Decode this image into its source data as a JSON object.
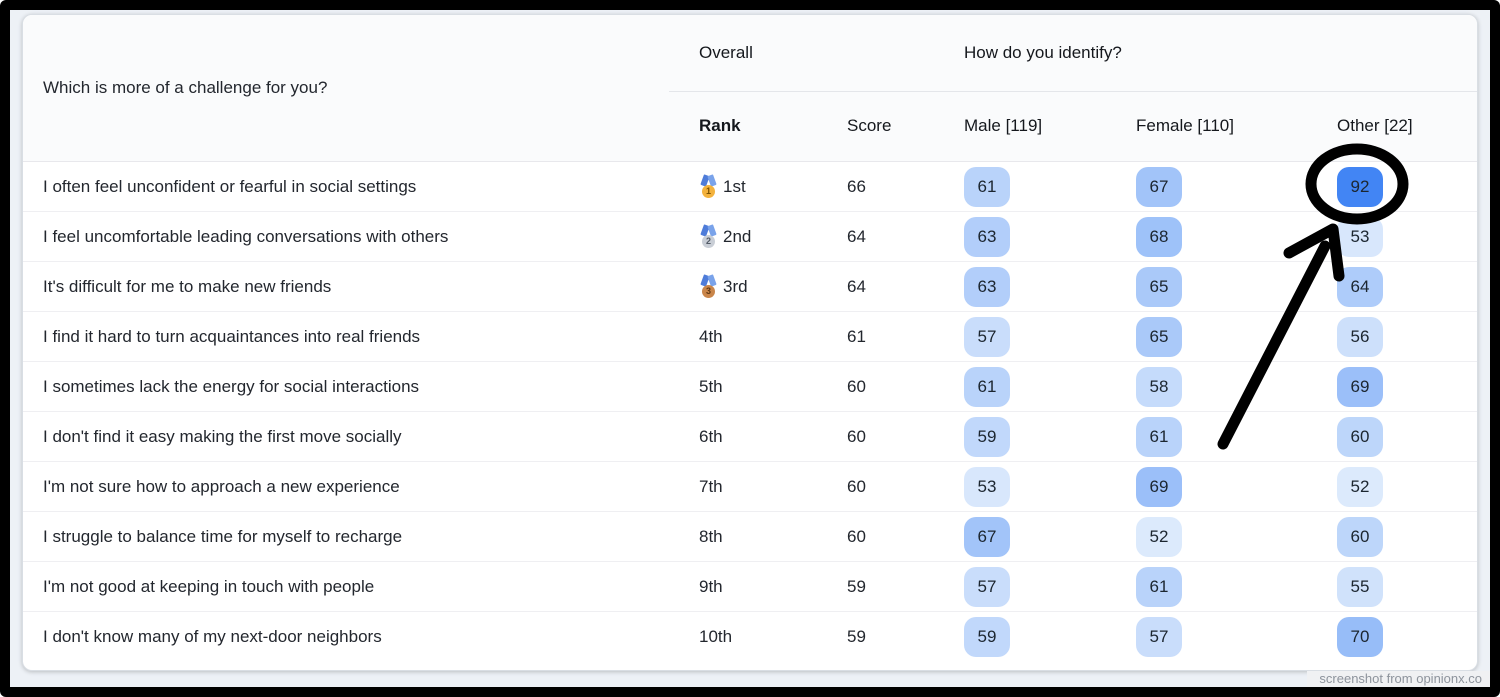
{
  "frame": {
    "border_color": "#000000",
    "page_background": "#edf1f6"
  },
  "table": {
    "question_header": "Which is more of a challenge for you?",
    "group_headers": {
      "overall": "Overall",
      "identify": "How do you identify?"
    },
    "columns": [
      "Rank",
      "Score",
      "Male [119]",
      "Female [110]",
      "Other [22]"
    ],
    "heat_scale": {
      "min_value": 52,
      "max_value": 92,
      "min_color": "#dceafc",
      "max_color": "#4285f4"
    },
    "rows": [
      {
        "question": "I often feel unconfident or fearful in social settings",
        "rank": "1st",
        "medal": "gold",
        "score": 66,
        "male": 61,
        "female": 67,
        "other": 92
      },
      {
        "question": "I feel uncomfortable leading conversations with others",
        "rank": "2nd",
        "medal": "silver",
        "score": 64,
        "male": 63,
        "female": 68,
        "other": 53
      },
      {
        "question": "It's difficult for me to make new friends",
        "rank": "3rd",
        "medal": "bronze",
        "score": 64,
        "male": 63,
        "female": 65,
        "other": 64
      },
      {
        "question": "I find it hard to turn acquaintances into real friends",
        "rank": "4th",
        "medal": null,
        "score": 61,
        "male": 57,
        "female": 65,
        "other": 56
      },
      {
        "question": "I sometimes lack the energy for social interactions",
        "rank": "5th",
        "medal": null,
        "score": 60,
        "male": 61,
        "female": 58,
        "other": 69
      },
      {
        "question": "I don't find it easy making the first move socially",
        "rank": "6th",
        "medal": null,
        "score": 60,
        "male": 59,
        "female": 61,
        "other": 60
      },
      {
        "question": "I'm not sure how to approach a new experience",
        "rank": "7th",
        "medal": null,
        "score": 60,
        "male": 53,
        "female": 69,
        "other": 52
      },
      {
        "question": "I struggle to balance time for myself to recharge",
        "rank": "8th",
        "medal": null,
        "score": 60,
        "male": 67,
        "female": 52,
        "other": 60
      },
      {
        "question": "I'm not good at keeping in touch with people",
        "rank": "9th",
        "medal": null,
        "score": 59,
        "male": 57,
        "female": 61,
        "other": 55
      },
      {
        "question": "I don't know many of my next-door neighbors",
        "rank": "10th",
        "medal": null,
        "score": 59,
        "male": 59,
        "female": 57,
        "other": 70
      }
    ]
  },
  "medals": {
    "gold": {
      "number": "1",
      "coin": "#f3b23d",
      "text": "#7c5200",
      "ribbon_left": "#4e7cd9",
      "ribbon_right": "#7aa3ea"
    },
    "silver": {
      "number": "2",
      "coin": "#c9ced6",
      "text": "#525a66",
      "ribbon_left": "#4e7cd9",
      "ribbon_right": "#7aa3ea"
    },
    "bronze": {
      "number": "3",
      "coin": "#c9854a",
      "text": "#5f3813",
      "ribbon_left": "#4e7cd9",
      "ribbon_right": "#7aa3ea"
    }
  },
  "annotation": {
    "type": "hand-drawn circle and arrow",
    "color": "#000000",
    "circled_value": "92"
  },
  "watermark": {
    "text": "screenshot from opinionx.co"
  }
}
